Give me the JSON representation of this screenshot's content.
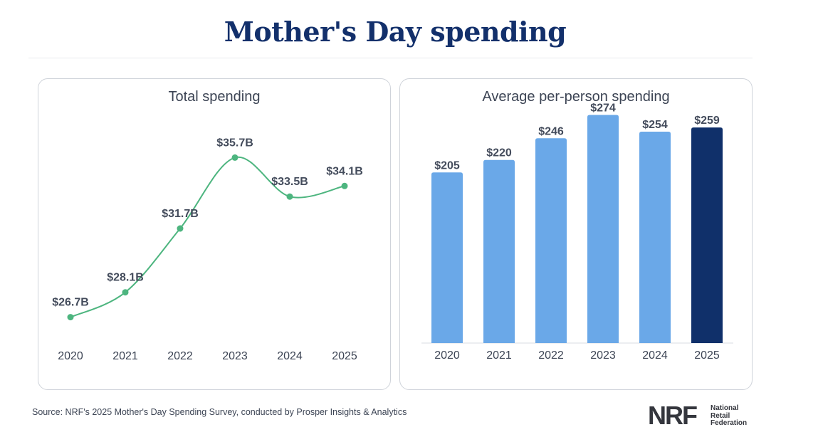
{
  "page": {
    "title": "Mother's Day spending",
    "source": "Source: NRF's 2025 Mother's Day Spending Survey, conducted by Prosper Insights & Analytics",
    "logo": {
      "mark": "NRF",
      "line1": "National",
      "line2": "Retail",
      "line3": "Federation"
    }
  },
  "colors": {
    "title": "#13306b",
    "line": "#4db57f",
    "bar": "#6aa8e8",
    "bar_highlight": "#10306a",
    "label": "#444c5c"
  },
  "chart_data": [
    {
      "type": "line",
      "title": "Total spending",
      "categories": [
        "2020",
        "2021",
        "2022",
        "2023",
        "2024",
        "2025"
      ],
      "values": [
        26.7,
        28.1,
        31.7,
        35.7,
        33.5,
        34.1
      ],
      "labels": [
        "$26.7B",
        "$28.1B",
        "$31.7B",
        "$35.7B",
        "$33.5B",
        "$34.1B"
      ],
      "unit": "billion USD",
      "ylim": [
        26,
        36.6
      ],
      "grid": false
    },
    {
      "type": "bar",
      "title": "Average per-person spending",
      "categories": [
        "2020",
        "2021",
        "2022",
        "2023",
        "2024",
        "2025"
      ],
      "values": [
        205,
        220,
        246,
        274,
        254,
        259
      ],
      "labels": [
        "$205",
        "$220",
        "$246",
        "$274",
        "$254",
        "$259"
      ],
      "highlight_index": 5,
      "unit": "USD",
      "ylim": [
        0,
        295
      ],
      "grid": false
    }
  ]
}
